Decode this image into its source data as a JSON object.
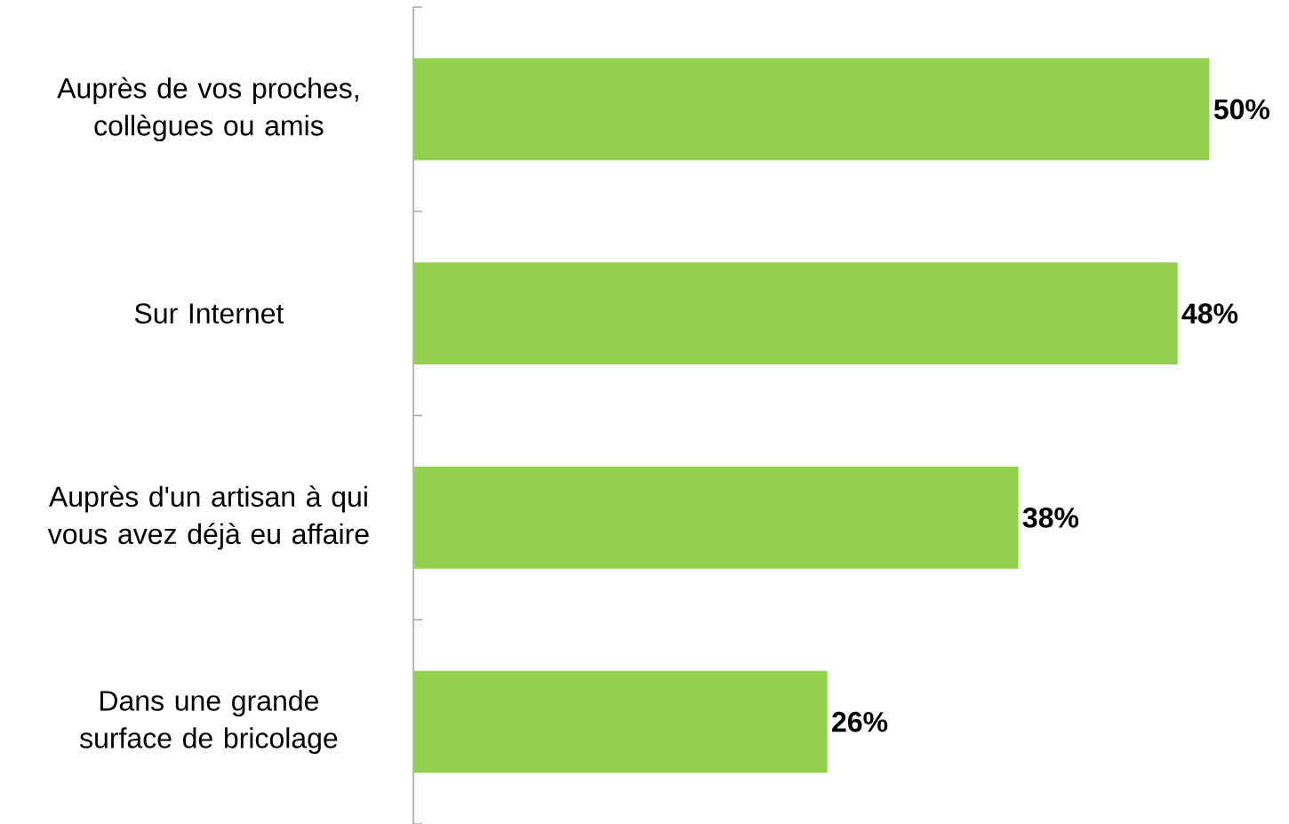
{
  "chart_data": {
    "type": "bar",
    "orientation": "horizontal",
    "categories": [
      "Auprès de vos proches, collègues ou amis",
      "Sur Internet",
      "Auprès d'un artisan à qui vous avez déjà eu affaire",
      "Dans une grande surface de bricolage"
    ],
    "values": [
      50,
      48,
      38,
      26
    ],
    "value_labels": [
      "50%",
      "48%",
      "38%",
      "26%"
    ],
    "color": "#92d050"
  }
}
